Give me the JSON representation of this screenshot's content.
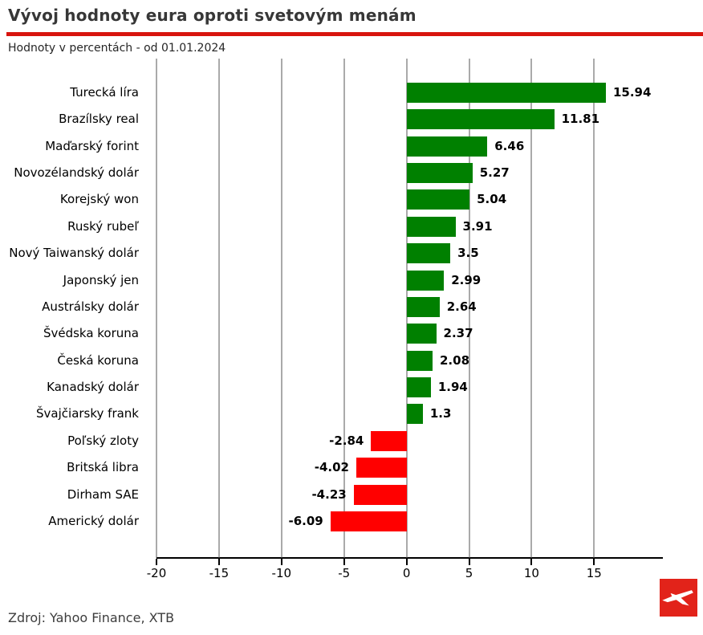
{
  "header": {
    "title": "Vývoj hodnoty eura oproti svetovým menám",
    "subtitle": "Hodnoty v percentách - od 01.01.2024"
  },
  "chart_data": {
    "type": "bar",
    "orientation": "horizontal",
    "title": "Vývoj hodnoty eura oproti svetovým menám",
    "subtitle": "Hodnoty v percentách - od 01.01.2024",
    "categories": [
      "Turecká líra",
      "Brazílsky real",
      "Maďarský forint",
      "Novozélandský dolár",
      "Korejský won",
      "Ruský rubeľ",
      "Nový Taiwanský dolár",
      "Japonský jen",
      "Austrálsky dolár",
      "Švédska koruna",
      "Česká koruna",
      "Kanadský dolár",
      "Švajčiarsky frank",
      "Poľský zloty",
      "Britská libra",
      "Dirham SAE",
      "Americký dolár"
    ],
    "values": [
      15.94,
      11.81,
      6.46,
      5.27,
      5.04,
      3.91,
      3.5,
      2.99,
      2.64,
      2.37,
      2.08,
      1.94,
      1.3,
      -2.84,
      -4.02,
      -4.23,
      -6.09
    ],
    "xlabel": "",
    "ylabel": "",
    "xlim": [
      -20,
      20.5
    ],
    "xticks": [
      -20,
      -15,
      -10,
      -5,
      0,
      5,
      10,
      15
    ],
    "grid": true,
    "positive_color": "#008000",
    "negative_color": "#ff0000",
    "gridline_color": "#555555",
    "axis_color": "#000000"
  },
  "footer": {
    "source": "Zdroj: Yahoo Finance, XTB"
  },
  "branding": {
    "logo_icon": "xtb-logo",
    "logo_color": "#e2231a",
    "divider_color": "#d8140e"
  }
}
